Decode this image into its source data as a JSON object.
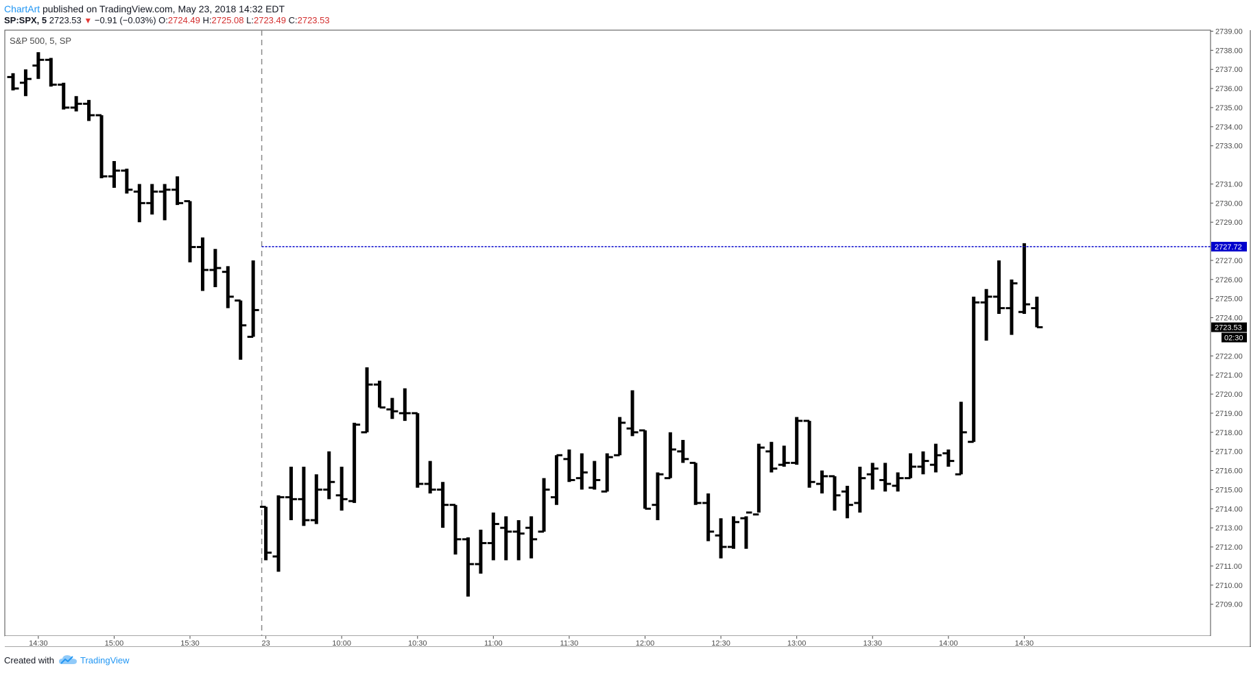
{
  "header": {
    "author": "ChartArt",
    "published_text": "published on TradingView.com, May 23, 2018 14:32 EDT",
    "symbol": "SP:SPX, 5",
    "last_price": "2723.53",
    "change_arrow": "▼",
    "change": "−0.91 (−0.03%)",
    "open_label": "O:",
    "open_value": "2724.49",
    "high_label": "H:",
    "high_value": "2725.08",
    "low_label": "L:",
    "low_value": "2723.49",
    "close_label": "C:",
    "close_value": "2723.53"
  },
  "footer": {
    "created_with": "Created with",
    "brand": "TradingView"
  },
  "colors": {
    "bar": "#000000",
    "hline": "#0000cc",
    "price_label_bg": "#000000",
    "hline_label_bg": "#0000cc",
    "link": "#2196f3",
    "down": "#d32f2f"
  },
  "chart_data": {
    "type": "ohlc",
    "title": "S&P 500, 5, SP",
    "ylim": [
      2708,
      2739
    ],
    "y_ticks": [
      "2709.00",
      "2710.00",
      "2711.00",
      "2712.00",
      "2713.00",
      "2714.00",
      "2715.00",
      "2716.00",
      "2717.00",
      "2718.00",
      "2719.00",
      "2720.00",
      "2721.00",
      "2722.00",
      "2724.00",
      "2725.00",
      "2726.00",
      "2727.00",
      "2729.00",
      "2730.00",
      "2731.00",
      "2733.00",
      "2734.00",
      "2735.00",
      "2736.00",
      "2737.00",
      "2738.00",
      "2739.00"
    ],
    "x_ticks": [
      {
        "label": "14:30",
        "bar": 2
      },
      {
        "label": "15:00",
        "bar": 8
      },
      {
        "label": "15:30",
        "bar": 14
      },
      {
        "label": "23",
        "bar": 20
      },
      {
        "label": "10:00",
        "bar": 26
      },
      {
        "label": "10:30",
        "bar": 32
      },
      {
        "label": "11:00",
        "bar": 38
      },
      {
        "label": "11:30",
        "bar": 44
      },
      {
        "label": "12:00",
        "bar": 50
      },
      {
        "label": "12:30",
        "bar": 56
      },
      {
        "label": "13:00",
        "bar": 62
      },
      {
        "label": "13:30",
        "bar": 68
      },
      {
        "label": "14:00",
        "bar": 74
      },
      {
        "label": "14:30",
        "bar": 80
      }
    ],
    "session_break_bar": 20,
    "horizontal_line": {
      "value": 2727.72,
      "label": "2727.72"
    },
    "last_price_label": "2723.53",
    "countdown_label": "02:30",
    "ohlc": [
      [
        2736.6,
        2736.8,
        2735.9,
        2736.0
      ],
      [
        2736.3,
        2737.0,
        2735.6,
        2736.5
      ],
      [
        2737.2,
        2737.9,
        2736.5,
        2737.5
      ],
      [
        2737.5,
        2737.6,
        2736.1,
        2736.2
      ],
      [
        2736.2,
        2736.3,
        2734.9,
        2735.0
      ],
      [
        2735.0,
        2735.6,
        2734.8,
        2735.2
      ],
      [
        2735.2,
        2735.4,
        2734.3,
        2734.6
      ],
      [
        2734.6,
        2734.6,
        2731.3,
        2731.4
      ],
      [
        2731.4,
        2732.2,
        2730.8,
        2731.7
      ],
      [
        2731.7,
        2731.8,
        2730.5,
        2730.7
      ],
      [
        2730.6,
        2731.0,
        2729.0,
        2730.0
      ],
      [
        2730.0,
        2731.0,
        2729.4,
        2730.6
      ],
      [
        2730.6,
        2731.0,
        2729.1,
        2730.7
      ],
      [
        2730.7,
        2731.4,
        2729.9,
        2730.0
      ],
      [
        2730.1,
        2730.1,
        2726.9,
        2727.7
      ],
      [
        2727.7,
        2728.2,
        2725.4,
        2726.5
      ],
      [
        2726.5,
        2727.6,
        2725.6,
        2726.6
      ],
      [
        2726.4,
        2726.7,
        2724.5,
        2725.1
      ],
      [
        2724.9,
        2724.9,
        2721.8,
        2723.6
      ],
      [
        2723.0,
        2727.0,
        2723.0,
        2724.4
      ],
      [
        2714.1,
        2714.1,
        2711.3,
        2711.7
      ],
      [
        2711.5,
        2714.7,
        2710.7,
        2714.6
      ],
      [
        2714.6,
        2716.2,
        2713.4,
        2714.5
      ],
      [
        2714.5,
        2716.2,
        2713.1,
        2713.4
      ],
      [
        2713.4,
        2715.8,
        2713.2,
        2715.0
      ],
      [
        2715.0,
        2717.0,
        2714.5,
        2715.4
      ],
      [
        2714.7,
        2716.2,
        2713.9,
        2714.5
      ],
      [
        2714.4,
        2718.5,
        2714.3,
        2718.4
      ],
      [
        2718.0,
        2721.4,
        2718.0,
        2720.5
      ],
      [
        2720.5,
        2720.7,
        2719.3,
        2719.3
      ],
      [
        2719.2,
        2719.8,
        2718.7,
        2719.1
      ],
      [
        2719.0,
        2720.3,
        2718.6,
        2719.0
      ],
      [
        2719.0,
        2719.0,
        2715.1,
        2715.3
      ],
      [
        2715.3,
        2716.5,
        2714.8,
        2715.0
      ],
      [
        2715.0,
        2715.4,
        2713.0,
        2714.2
      ],
      [
        2714.2,
        2714.2,
        2711.6,
        2712.4
      ],
      [
        2712.4,
        2712.5,
        2709.4,
        2711.1
      ],
      [
        2711.1,
        2712.9,
        2710.6,
        2712.2
      ],
      [
        2712.2,
        2713.8,
        2711.3,
        2713.2
      ],
      [
        2713.0,
        2713.6,
        2711.3,
        2712.8
      ],
      [
        2712.8,
        2713.4,
        2711.3,
        2712.7
      ],
      [
        2713.0,
        2713.6,
        2711.4,
        2712.4
      ],
      [
        2712.8,
        2715.6,
        2712.8,
        2715.0
      ],
      [
        2714.6,
        2716.8,
        2714.2,
        2716.8
      ],
      [
        2716.6,
        2717.1,
        2715.4,
        2715.5
      ],
      [
        2715.6,
        2716.9,
        2715.0,
        2715.9
      ],
      [
        2715.1,
        2716.5,
        2715.0,
        2715.5
      ],
      [
        2714.9,
        2716.9,
        2714.9,
        2716.7
      ],
      [
        2716.8,
        2718.8,
        2716.8,
        2718.5
      ],
      [
        2718.2,
        2720.2,
        2717.8,
        2718.0
      ],
      [
        2718.1,
        2718.1,
        2714.0,
        2714.0
      ],
      [
        2714.2,
        2715.9,
        2713.4,
        2715.8
      ],
      [
        2715.6,
        2718.0,
        2715.6,
        2717.1
      ],
      [
        2717.0,
        2717.6,
        2716.4,
        2716.6
      ],
      [
        2716.4,
        2716.4,
        2714.2,
        2714.3
      ],
      [
        2714.3,
        2714.8,
        2712.3,
        2712.8
      ],
      [
        2712.6,
        2713.5,
        2711.4,
        2712.0
      ],
      [
        2712.0,
        2713.6,
        2711.9,
        2713.3
      ],
      [
        2713.5,
        2713.6,
        2711.9,
        2713.8
      ],
      [
        2713.7,
        2717.4,
        2713.8,
        2717.2
      ],
      [
        2717.0,
        2717.5,
        2715.9,
        2716.1
      ],
      [
        2716.3,
        2717.3,
        2716.2,
        2716.4
      ],
      [
        2716.4,
        2718.8,
        2716.3,
        2718.6
      ],
      [
        2718.6,
        2718.6,
        2715.1,
        2715.4
      ],
      [
        2715.3,
        2716.0,
        2714.8,
        2715.7
      ],
      [
        2715.7,
        2715.7,
        2713.9,
        2714.7
      ],
      [
        2714.9,
        2715.2,
        2713.5,
        2714.2
      ],
      [
        2714.3,
        2716.2,
        2713.8,
        2715.6
      ],
      [
        2715.8,
        2716.4,
        2715.0,
        2716.1
      ],
      [
        2715.5,
        2716.4,
        2714.9,
        2715.3
      ],
      [
        2715.2,
        2715.9,
        2714.9,
        2715.6
      ],
      [
        2715.6,
        2716.9,
        2715.6,
        2716.2
      ],
      [
        2716.2,
        2717.0,
        2715.8,
        2716.5
      ],
      [
        2716.3,
        2717.4,
        2715.9,
        2716.8
      ],
      [
        2716.9,
        2717.1,
        2716.2,
        2716.5
      ],
      [
        2715.8,
        2719.6,
        2715.8,
        2718.0
      ],
      [
        2717.5,
        2725.1,
        2717.5,
        2724.8
      ],
      [
        2724.8,
        2725.5,
        2722.8,
        2725.1
      ],
      [
        2725.1,
        2727.0,
        2724.2,
        2724.5
      ],
      [
        2724.5,
        2726.0,
        2723.1,
        2725.8
      ],
      [
        2724.3,
        2727.9,
        2724.2,
        2724.7
      ],
      [
        2724.5,
        2725.1,
        2723.5,
        2723.5
      ]
    ]
  }
}
